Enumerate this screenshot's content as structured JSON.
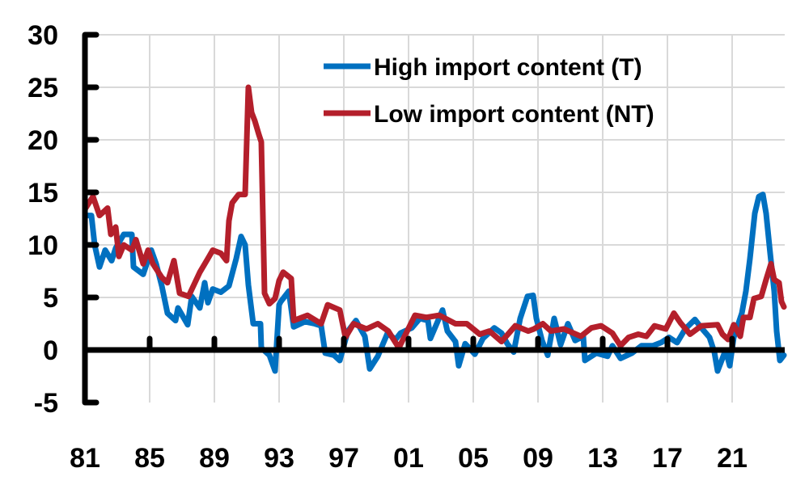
{
  "chart_data": {
    "type": "line",
    "title": "",
    "xlabel": "",
    "ylabel": "",
    "xlim": [
      1981,
      2024.3
    ],
    "ylim": [
      -5,
      30
    ],
    "y_ticks": [
      -5,
      0,
      5,
      10,
      15,
      20,
      25,
      30
    ],
    "x_ticks": [
      1981,
      1985,
      1989,
      1993,
      1997,
      2001,
      2005,
      2009,
      2013,
      2017,
      2021
    ],
    "x_tick_labels": [
      "81",
      "85",
      "89",
      "93",
      "97",
      "01",
      "05",
      "09",
      "13",
      "17",
      "21"
    ],
    "y_tick_labels": [
      "-5",
      "0",
      "5",
      "10",
      "15",
      "20",
      "25",
      "30"
    ],
    "grid": true,
    "legend_position": "top-right",
    "series": [
      {
        "name": "High import content (T)",
        "color": "#0070c0",
        "points": [
          [
            1981.0,
            12.8
          ],
          [
            1981.4,
            12.8
          ],
          [
            1981.6,
            10
          ],
          [
            1981.9,
            7.9
          ],
          [
            1982.25,
            9.5
          ],
          [
            1982.65,
            8.5
          ],
          [
            1982.9,
            9.7
          ],
          [
            1983.4,
            11
          ],
          [
            1983.9,
            11
          ],
          [
            1984.0,
            7.9
          ],
          [
            1984.6,
            7.2
          ],
          [
            1985.1,
            9.5
          ],
          [
            1985.4,
            8.2
          ],
          [
            1985.75,
            6.1
          ],
          [
            1986.1,
            3.5
          ],
          [
            1986.6,
            2.8
          ],
          [
            1986.75,
            4
          ],
          [
            1987.35,
            2.4
          ],
          [
            1987.6,
            5.1
          ],
          [
            1988.1,
            4
          ],
          [
            1988.4,
            6.4
          ],
          [
            1988.6,
            4.5
          ],
          [
            1988.9,
            5.8
          ],
          [
            1989.4,
            5.5
          ],
          [
            1989.9,
            6.1
          ],
          [
            1990.35,
            8.7
          ],
          [
            1990.65,
            10.8
          ],
          [
            1990.9,
            10
          ],
          [
            1991.1,
            6.2
          ],
          [
            1991.4,
            2.5
          ],
          [
            1991.85,
            2.5
          ],
          [
            1991.9,
            0.2
          ],
          [
            1992.4,
            -0.5
          ],
          [
            1992.75,
            -2
          ],
          [
            1993.0,
            4.3
          ],
          [
            1993.1,
            4.6
          ],
          [
            1993.6,
            5.6
          ],
          [
            1993.9,
            2.2
          ],
          [
            1994.6,
            2.7
          ],
          [
            1995.2,
            2.5
          ],
          [
            1995.6,
            2.3
          ],
          [
            1995.85,
            -0.3
          ],
          [
            1996.4,
            -0.5
          ],
          [
            1996.75,
            -1
          ],
          [
            1997.25,
            1.8
          ],
          [
            1997.75,
            2.8
          ],
          [
            1998.3,
            1.3
          ],
          [
            1998.6,
            -1.8
          ],
          [
            1999.1,
            -0.6
          ],
          [
            1999.7,
            1.6
          ],
          [
            2000.2,
            1
          ],
          [
            2000.5,
            1.6
          ],
          [
            2001.2,
            2.1
          ],
          [
            2001.7,
            3
          ],
          [
            2002.2,
            2.8
          ],
          [
            2002.35,
            1.1
          ],
          [
            2003.1,
            3.8
          ],
          [
            2003.4,
            1.8
          ],
          [
            2003.9,
            0.8
          ],
          [
            2004.1,
            -1.5
          ],
          [
            2004.5,
            0.6
          ],
          [
            2005.1,
            -0.4
          ],
          [
            2005.6,
            1.1
          ],
          [
            2006.3,
            2.1
          ],
          [
            2006.75,
            1.6
          ],
          [
            2007.1,
            0.6
          ],
          [
            2007.5,
            -0.2
          ],
          [
            2007.9,
            3
          ],
          [
            2008.35,
            5.1
          ],
          [
            2008.7,
            5.2
          ],
          [
            2008.9,
            3
          ],
          [
            2009.25,
            0.9
          ],
          [
            2009.6,
            -0.5
          ],
          [
            2010.0,
            3
          ],
          [
            2010.4,
            0.5
          ],
          [
            2010.85,
            2.5
          ],
          [
            2011.3,
            0.9
          ],
          [
            2011.8,
            1.3
          ],
          [
            2011.9,
            -1
          ],
          [
            2012.6,
            -0.3
          ],
          [
            2013.3,
            -0.6
          ],
          [
            2013.6,
            0.4
          ],
          [
            2014.1,
            -0.8
          ],
          [
            2014.8,
            -0.3
          ],
          [
            2015.4,
            0.4
          ],
          [
            2016.1,
            0.4
          ],
          [
            2016.6,
            0.7
          ],
          [
            2017.1,
            1.2
          ],
          [
            2017.6,
            0.7
          ],
          [
            2018.1,
            2
          ],
          [
            2018.7,
            2.9
          ],
          [
            2019.1,
            2.1
          ],
          [
            2019.6,
            1.2
          ],
          [
            2019.9,
            -0.2
          ],
          [
            2020.1,
            -2
          ],
          [
            2020.6,
            0
          ],
          [
            2020.85,
            -1.5
          ],
          [
            2021.1,
            1.2
          ],
          [
            2021.6,
            3.5
          ],
          [
            2021.85,
            5.6
          ],
          [
            2022.1,
            8.7
          ],
          [
            2022.4,
            13
          ],
          [
            2022.65,
            14.6
          ],
          [
            2022.9,
            14.8
          ],
          [
            2023.1,
            13
          ],
          [
            2023.35,
            9.2
          ],
          [
            2023.6,
            5.6
          ],
          [
            2023.75,
            1.8
          ],
          [
            2023.95,
            -1
          ],
          [
            2024.2,
            -0.5
          ]
        ]
      },
      {
        "name": "Low import content (NT)",
        "color": "#b41f2b",
        "points": [
          [
            1981.0,
            13.4
          ],
          [
            1981.5,
            14.6
          ],
          [
            1981.9,
            12.8
          ],
          [
            1982.4,
            13.5
          ],
          [
            1982.6,
            11
          ],
          [
            1982.9,
            11.7
          ],
          [
            1983.1,
            8.9
          ],
          [
            1983.4,
            10
          ],
          [
            1983.9,
            9.5
          ],
          [
            1984.15,
            10.5
          ],
          [
            1984.6,
            8.2
          ],
          [
            1984.9,
            9.5
          ],
          [
            1985.2,
            8.2
          ],
          [
            1985.75,
            6.9
          ],
          [
            1986.1,
            6.4
          ],
          [
            1986.5,
            8.5
          ],
          [
            1986.85,
            5.4
          ],
          [
            1987.4,
            5.1
          ],
          [
            1988.1,
            7.4
          ],
          [
            1988.6,
            8.7
          ],
          [
            1988.9,
            9.5
          ],
          [
            1989.4,
            9.2
          ],
          [
            1989.75,
            8.5
          ],
          [
            1989.9,
            12.3
          ],
          [
            1990.1,
            14
          ],
          [
            1990.5,
            14.8
          ],
          [
            1990.9,
            14.8
          ],
          [
            1991.1,
            25
          ],
          [
            1991.3,
            22.6
          ],
          [
            1991.5,
            21.8
          ],
          [
            1991.75,
            20.5
          ],
          [
            1991.9,
            19.8
          ],
          [
            1992.1,
            5.4
          ],
          [
            1992.4,
            4.4
          ],
          [
            1992.75,
            4.9
          ],
          [
            1993.0,
            6.6
          ],
          [
            1993.25,
            7.4
          ],
          [
            1993.75,
            6.8
          ],
          [
            1993.9,
            2.8
          ],
          [
            1994.75,
            3.3
          ],
          [
            1995.6,
            2.5
          ],
          [
            1996.0,
            4.3
          ],
          [
            1996.75,
            3.8
          ],
          [
            1997.1,
            1.2
          ],
          [
            1997.6,
            2.5
          ],
          [
            1998.4,
            2
          ],
          [
            1999.1,
            2.5
          ],
          [
            1999.75,
            1.8
          ],
          [
            2000.4,
            0.2
          ],
          [
            2001.4,
            3.3
          ],
          [
            2002.1,
            3.1
          ],
          [
            2002.9,
            3.3
          ],
          [
            2003.9,
            2.5
          ],
          [
            2004.6,
            2.5
          ],
          [
            2005.4,
            1.5
          ],
          [
            2006.0,
            1.8
          ],
          [
            2006.75,
            0.8
          ],
          [
            2007.6,
            2.3
          ],
          [
            2008.4,
            1.8
          ],
          [
            2008.75,
            2
          ],
          [
            2009.3,
            2.5
          ],
          [
            2009.8,
            1.8
          ],
          [
            2010.6,
            2
          ],
          [
            2011.65,
            1.3
          ],
          [
            2012.3,
            2.1
          ],
          [
            2012.9,
            2.3
          ],
          [
            2013.6,
            1.6
          ],
          [
            2014.1,
            0.4
          ],
          [
            2014.6,
            1.2
          ],
          [
            2015.2,
            1.5
          ],
          [
            2015.7,
            1.3
          ],
          [
            2016.2,
            2.3
          ],
          [
            2016.9,
            2
          ],
          [
            2017.4,
            3.5
          ],
          [
            2017.8,
            2.6
          ],
          [
            2018.4,
            1.5
          ],
          [
            2019.1,
            2.3
          ],
          [
            2020.1,
            2.4
          ],
          [
            2020.4,
            1.5
          ],
          [
            2020.75,
            1
          ],
          [
            2021.1,
            2.4
          ],
          [
            2021.5,
            1.3
          ],
          [
            2021.7,
            3.1
          ],
          [
            2022.1,
            3.1
          ],
          [
            2022.35,
            4.9
          ],
          [
            2022.8,
            5.1
          ],
          [
            2023.1,
            6.7
          ],
          [
            2023.4,
            8.2
          ],
          [
            2023.6,
            6.7
          ],
          [
            2023.9,
            6.4
          ],
          [
            2024.05,
            4.6
          ],
          [
            2024.2,
            4.1
          ]
        ]
      }
    ]
  }
}
